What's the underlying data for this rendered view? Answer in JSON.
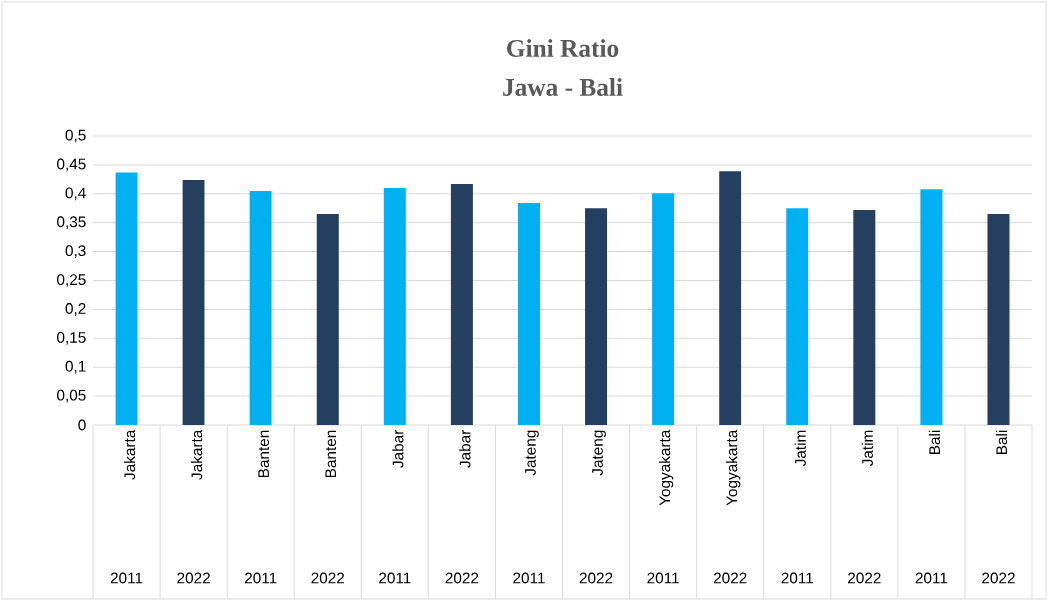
{
  "chart_data": {
    "type": "bar",
    "title": "Gini Ratio",
    "subtitle": "Jawa - Bali",
    "categories": [
      "Jakarta",
      "Jakarta",
      "Banten",
      "Banten",
      "Jabar",
      "Jabar",
      "Jateng",
      "Jateng",
      "Yogyakarta",
      "Yogyakarta",
      "Jatim",
      "Jatim",
      "Bali",
      "Bali"
    ],
    "values": [
      0.437,
      0.424,
      0.405,
      0.365,
      0.41,
      0.417,
      0.384,
      0.375,
      0.401,
      0.439,
      0.375,
      0.372,
      0.408,
      0.365
    ],
    "colors": [
      "#00b0f0",
      "#243f60",
      "#00b0f0",
      "#243f60",
      "#00b0f0",
      "#243f60",
      "#00b0f0",
      "#243f60",
      "#00b0f0",
      "#243f60",
      "#00b0f0",
      "#243f60",
      "#00b0f0",
      "#243f60"
    ],
    "annotations": [
      "2011",
      "2022",
      "2011",
      "2022",
      "2011",
      "2022",
      "2011",
      "2022",
      "2011",
      "2022",
      "2011",
      "2022",
      "2011",
      "2022"
    ],
    "ylim": [
      0,
      0.5
    ],
    "yticks": [
      0,
      {
        "value": 0.05,
        "label": "0,05"
      },
      {
        "value": 0.1,
        "label": "0,1"
      },
      {
        "value": 0.15,
        "label": "0,15"
      },
      {
        "value": 0.2,
        "label": "0,2"
      },
      {
        "value": 0.25,
        "label": "0,25"
      },
      {
        "value": 0.3,
        "label": "0,3"
      },
      {
        "value": 0.35,
        "label": "0,35"
      },
      {
        "value": 0.4,
        "label": "0,4"
      },
      {
        "value": 0.45,
        "label": "0,45"
      },
      {
        "value": 0.5,
        "label": "0,5"
      }
    ],
    "grid": "y"
  }
}
